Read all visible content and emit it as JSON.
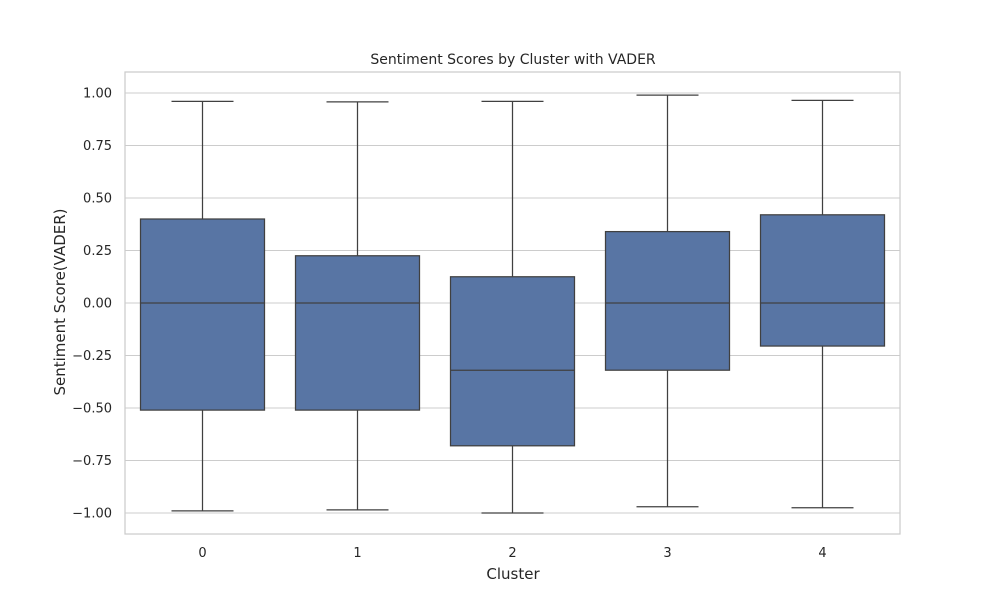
{
  "chart_data": {
    "type": "box",
    "title": "Sentiment Scores by Cluster with VADER",
    "xlabel": "Cluster",
    "ylabel": "Sentiment Score(VADER)",
    "categories": [
      "0",
      "1",
      "2",
      "3",
      "4"
    ],
    "ylim": [
      -1.1,
      1.1
    ],
    "yticks": [
      1.0,
      0.75,
      0.5,
      0.25,
      0.0,
      -0.25,
      -0.5,
      -0.75,
      -1.0
    ],
    "ytick_labels": [
      "1.00",
      "0.75",
      "0.50",
      "0.25",
      "0.00",
      "−0.25",
      "−0.50",
      "−0.75",
      "−1.00"
    ],
    "grid": true,
    "box_color": "#5875a4",
    "line_color": "#404040",
    "boxes": [
      {
        "category": "0",
        "whisker_low": -0.99,
        "q1": -0.51,
        "median": 0.0,
        "q3": 0.4,
        "whisker_high": 0.96
      },
      {
        "category": "1",
        "whisker_low": -0.985,
        "q1": -0.51,
        "median": 0.0,
        "q3": 0.225,
        "whisker_high": 0.958
      },
      {
        "category": "2",
        "whisker_low": -1.0,
        "q1": -0.68,
        "median": -0.32,
        "q3": 0.125,
        "whisker_high": 0.96
      },
      {
        "category": "3",
        "whisker_low": -0.97,
        "q1": -0.32,
        "median": 0.0,
        "q3": 0.34,
        "whisker_high": 0.99
      },
      {
        "category": "4",
        "whisker_low": -0.975,
        "q1": -0.205,
        "median": 0.0,
        "q3": 0.42,
        "whisker_high": 0.965
      }
    ]
  }
}
